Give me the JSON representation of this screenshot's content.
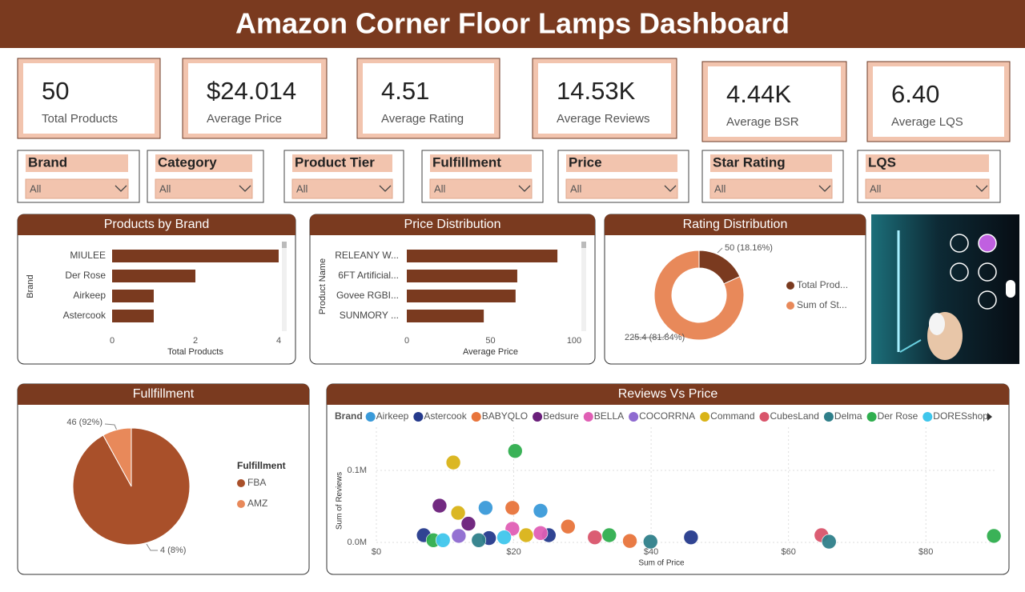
{
  "header": {
    "title": "Amazon Corner Floor Lamps Dashboard"
  },
  "kpis": [
    {
      "value": "50",
      "label": "Total Products"
    },
    {
      "value": "$24.014",
      "label": "Average Price"
    },
    {
      "value": "4.51",
      "label": "Average Rating"
    },
    {
      "value": "14.53K",
      "label": "Average Reviews"
    },
    {
      "value": "4.44K",
      "label": "Average BSR"
    },
    {
      "value": "6.40",
      "label": "Average LQS"
    }
  ],
  "filters": [
    {
      "label": "Brand",
      "selection": "All"
    },
    {
      "label": "Category",
      "selection": "All"
    },
    {
      "label": "Product Tier",
      "selection": "All"
    },
    {
      "label": "Fulfillment",
      "selection": "All"
    },
    {
      "label": "Price",
      "selection": "All"
    },
    {
      "label": "Star Rating",
      "selection": "All"
    },
    {
      "label": "LQS",
      "selection": "All"
    }
  ],
  "chart_data": [
    {
      "type": "bar",
      "title": "Products by Brand",
      "x_label": "Total Products",
      "y_label": "Brand",
      "categories": [
        "MIULEE",
        "Der Rose",
        "Airkeep",
        "Astercook"
      ],
      "values": [
        4,
        2,
        1,
        1
      ],
      "color": "#7a3a1f",
      "xlim": [
        0,
        4
      ],
      "xticks": [
        0,
        2,
        4
      ]
    },
    {
      "type": "bar",
      "title": "Price Distribution",
      "x_label": "Average Price",
      "y_label": "Product Name",
      "categories": [
        "RELEANY W...",
        "6FT Artificial...",
        "Govee RGBI...",
        "SUNMORY ..."
      ],
      "values": [
        90,
        66,
        65,
        46
      ],
      "color": "#7a3a1f",
      "xlim": [
        0,
        100
      ],
      "xticks": [
        0,
        50,
        100
      ]
    },
    {
      "type": "donut",
      "title": "Rating Distribution",
      "categories": [
        "Total Prod...",
        "Sum of St..."
      ],
      "values": [
        50,
        225.4
      ],
      "value_labels": [
        "50 (18.16%)",
        "225.4 (81.84%)"
      ],
      "colors": [
        "#7a3a1f",
        "#e8895a"
      ]
    },
    {
      "type": "pie",
      "title": "Fullfillment",
      "legend_title": "Fulfillment",
      "categories": [
        "FBA",
        "AMZ"
      ],
      "values": [
        46,
        4
      ],
      "value_labels": [
        "46 (92%)",
        "4 (8%)"
      ],
      "colors": [
        "#a9502a",
        "#e8895a"
      ]
    },
    {
      "type": "scatter",
      "title": "Reviews Vs Price",
      "legend_title": "Brand",
      "x_label": "Sum of Price",
      "y_label": "Sum of Reviews",
      "xlim": [
        0,
        90
      ],
      "ylim": [
        0,
        160000
      ],
      "xticks": [
        {
          "value": 0,
          "label": "$0"
        },
        {
          "value": 20,
          "label": "$20"
        },
        {
          "value": 40,
          "label": "$40"
        },
        {
          "value": 60,
          "label": "$60"
        },
        {
          "value": 80,
          "label": "$80"
        }
      ],
      "yticks": [
        {
          "value": 0,
          "label": "0.0M"
        },
        {
          "value": 100000,
          "label": "0.1M"
        }
      ],
      "grid": true,
      "series": [
        {
          "name": "Airkeep",
          "color": "#3a9ad9",
          "x": [
            15.9,
            23.9
          ],
          "values": [
            48000,
            44000
          ]
        },
        {
          "name": "Astercook",
          "color": "#253a8c",
          "x": [
            6.9,
            45.8,
            16.4,
            25.1
          ],
          "values": [
            10000,
            7000,
            6000,
            10000
          ]
        },
        {
          "name": "BABYQLO",
          "color": "#e8743b",
          "x": [
            19.8,
            27.9,
            36.9
          ],
          "values": [
            48000,
            22000,
            2000
          ]
        },
        {
          "name": "Bedsure",
          "color": "#6a1f7a",
          "x": [
            9.2,
            13.4
          ],
          "values": [
            51000,
            26000
          ]
        },
        {
          "name": "BELLA",
          "color": "#e05fb5",
          "x": [
            19.8,
            23.9
          ],
          "values": [
            19000,
            13000
          ]
        },
        {
          "name": "COCORRNA",
          "color": "#8e6ad0",
          "x": [
            12.0
          ],
          "values": [
            9000
          ]
        },
        {
          "name": "Command",
          "color": "#d9b317",
          "x": [
            11.2,
            21.8,
            11.9
          ],
          "values": [
            111000,
            10000,
            41000
          ]
        },
        {
          "name": "CubesLand",
          "color": "#d9546b",
          "x": [
            31.8,
            64.8
          ],
          "values": [
            7000,
            10000
          ]
        },
        {
          "name": "Delma",
          "color": "#2f7f8a",
          "x": [
            39.9,
            65.9,
            14.9
          ],
          "values": [
            1000,
            1000,
            3000
          ]
        },
        {
          "name": "Der Rose",
          "color": "#2fae4e",
          "x": [
            20.2,
            33.9,
            89.9,
            8.3
          ],
          "values": [
            127000,
            10000,
            9000,
            3000
          ]
        },
        {
          "name": "DORESshop",
          "color": "#3fc6ec",
          "x": [
            9.7,
            18.6
          ],
          "values": [
            3000,
            7000
          ]
        }
      ]
    }
  ]
}
